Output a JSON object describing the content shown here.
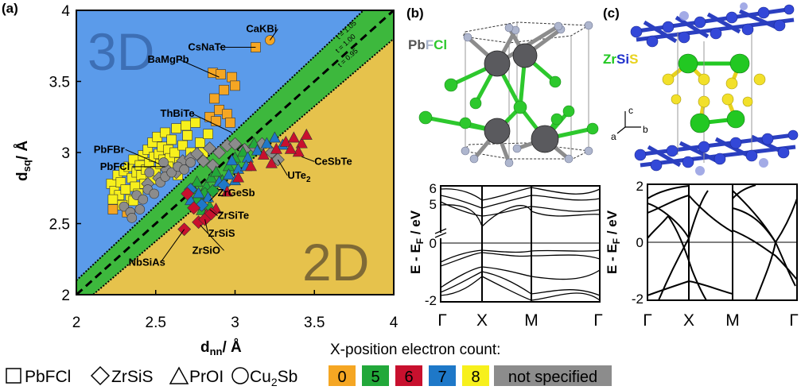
{
  "chart_data": [
    {
      "type": "scatter",
      "panel_label": "(a)",
      "xlabel_main": "d",
      "xlabel_sub": "nn",
      "xlabel_unit": "/ Å",
      "ylabel_main": "d",
      "ylabel_sub": "sq",
      "ylabel_unit": "/ Å",
      "xlim": [
        2,
        4
      ],
      "ylim": [
        2,
        4
      ],
      "xticks": [
        "2",
        "2.5",
        "3",
        "3.5",
        "4"
      ],
      "yticks": [
        "2",
        "2.5",
        "3",
        "3.5",
        "4"
      ],
      "region_labels": [
        "3D",
        "2D"
      ],
      "boundary_lines": [
        {
          "label": "t = 1.05",
          "slope": 1.05
        },
        {
          "label": "t = 1.00",
          "slope": 1.0
        },
        {
          "label": "t = 0.95",
          "slope": 0.95
        }
      ],
      "annotations": [
        {
          "text": "CaKBi",
          "x": 3.22,
          "y": 3.79
        },
        {
          "text": "CsNaTe",
          "x": 3.13,
          "y": 3.74
        },
        {
          "text": "BaMgPb",
          "x": 2.9,
          "y": 3.53
        },
        {
          "text": "ThBiTe",
          "x": 2.98,
          "y": 3.14
        },
        {
          "text": "PbFBr",
          "x": 2.52,
          "y": 2.92
        },
        {
          "text": "PbFCl",
          "x": 2.56,
          "y": 2.9
        },
        {
          "text": "CeSbTe",
          "x": 3.42,
          "y": 2.97
        },
        {
          "text": "UTe",
          "sub": "2",
          "x": 3.27,
          "y": 2.95
        },
        {
          "text": "ZrGeSb",
          "x": 2.84,
          "y": 2.66
        },
        {
          "text": "ZrSiTe",
          "x": 2.84,
          "y": 2.6
        },
        {
          "text": "ZrSiS",
          "x": 2.81,
          "y": 2.53
        },
        {
          "text": "ZrSiO",
          "x": 2.78,
          "y": 2.49
        },
        {
          "text": "NbSiAs",
          "x": 2.68,
          "y": 2.46
        }
      ],
      "structure_legend": [
        {
          "symbol": "square",
          "label": "PbFCl"
        },
        {
          "symbol": "diamond",
          "label": "ZrSiS"
        },
        {
          "symbol": "triangle",
          "label": "PrOI"
        },
        {
          "symbol": "circle",
          "label": "Cu",
          "sub": "2",
          "suffix": "Sb"
        }
      ],
      "electron_count_legend": {
        "title": "X-position electron count:",
        "items": [
          {
            "label": "0",
            "color": "#F5A623"
          },
          {
            "label": "5",
            "color": "#22A83A"
          },
          {
            "label": "6",
            "color": "#C8102E"
          },
          {
            "label": "7",
            "color": "#1E78C8"
          },
          {
            "label": "8",
            "color": "#F7F01C"
          },
          {
            "label": "not specified",
            "color": "#8C8C8C"
          }
        ]
      },
      "series": [
        {
          "structure": "square",
          "count": "8",
          "points": [
            [
              2.22,
              2.78
            ],
            [
              2.24,
              2.73
            ],
            [
              2.26,
              2.84
            ],
            [
              2.27,
              2.7
            ],
            [
              2.28,
              2.79
            ],
            [
              2.3,
              2.87
            ],
            [
              2.31,
              2.74
            ],
            [
              2.33,
              2.9
            ],
            [
              2.34,
              2.67
            ],
            [
              2.35,
              2.82
            ],
            [
              2.36,
              2.95
            ],
            [
              2.37,
              2.76
            ],
            [
              2.38,
              2.86
            ],
            [
              2.39,
              2.71
            ],
            [
              2.4,
              2.91
            ],
            [
              2.41,
              2.84
            ],
            [
              2.42,
              2.98
            ],
            [
              2.43,
              2.78
            ],
            [
              2.44,
              2.88
            ],
            [
              2.45,
              3.02
            ],
            [
              2.46,
              2.93
            ],
            [
              2.47,
              2.81
            ],
            [
              2.48,
              3.07
            ],
            [
              2.49,
              2.97
            ],
            [
              2.5,
              2.87
            ],
            [
              2.51,
              3.11
            ],
            [
              2.52,
              2.99
            ],
            [
              2.53,
              2.92
            ],
            [
              2.54,
              3.04
            ],
            [
              2.55,
              2.95
            ],
            [
              2.56,
              3.14
            ],
            [
              2.58,
              3.02
            ],
            [
              2.59,
              2.96
            ],
            [
              2.6,
              3.09
            ],
            [
              2.62,
              3.0
            ],
            [
              2.63,
              3.17
            ],
            [
              2.65,
              2.93
            ],
            [
              2.67,
              3.05
            ],
            [
              2.7,
              3.12
            ],
            [
              2.72,
              3.0
            ],
            [
              2.75,
              3.21
            ],
            [
              2.78,
              3.07
            ],
            [
              2.8,
              3.0
            ],
            [
              2.83,
              3.13
            ],
            [
              2.23,
              2.67
            ],
            [
              2.29,
              2.63
            ],
            [
              2.36,
              2.66
            ],
            [
              2.58,
              2.9
            ],
            [
              2.64,
              2.84
            ],
            [
              2.69,
              3.19
            ]
          ]
        },
        {
          "structure": "square",
          "count": "0",
          "points": [
            [
              2.23,
              2.6
            ],
            [
              2.32,
              2.58
            ],
            [
              2.84,
              3.25
            ],
            [
              2.87,
              3.38
            ],
            [
              2.9,
              3.3
            ],
            [
              2.93,
              3.44
            ],
            [
              2.95,
              3.27
            ],
            [
              2.98,
              3.53
            ],
            [
              2.97,
              3.21
            ],
            [
              3.0,
              3.47
            ],
            [
              2.88,
              3.22
            ],
            [
              2.86,
              3.56
            ],
            [
              2.91,
              3.55
            ],
            [
              3.13,
              3.74
            ]
          ]
        },
        {
          "structure": "circle",
          "count": "0",
          "points": [
            [
              3.22,
              3.79
            ]
          ]
        },
        {
          "structure": "diamond",
          "count": "ns",
          "points": [
            [
              2.52,
              2.82
            ],
            [
              2.57,
              2.88
            ],
            [
              2.63,
              2.86
            ],
            [
              2.67,
              2.94
            ],
            [
              2.72,
              2.96
            ],
            [
              2.76,
              2.99
            ],
            [
              2.84,
              3.03
            ],
            [
              2.9,
              3.0
            ],
            [
              2.95,
              3.05
            ],
            [
              3.0,
              3.06
            ],
            [
              3.06,
              3.02
            ],
            [
              3.12,
              3.04
            ],
            [
              3.17,
              3.06
            ],
            [
              3.23,
              3.0
            ],
            [
              3.27,
              2.95
            ],
            [
              2.8,
              2.94
            ],
            [
              2.86,
              2.91
            ],
            [
              2.45,
              2.78
            ]
          ]
        },
        {
          "structure": "circle",
          "count": "ns",
          "points": [
            [
              2.3,
              2.62
            ],
            [
              2.34,
              2.58
            ],
            [
              2.38,
              2.7
            ],
            [
              2.42,
              2.67
            ],
            [
              2.45,
              2.74
            ],
            [
              2.49,
              2.71
            ],
            [
              2.53,
              2.79
            ],
            [
              2.56,
              2.83
            ],
            [
              2.6,
              2.86
            ],
            [
              2.64,
              2.9
            ],
            [
              2.68,
              2.88
            ],
            [
              2.72,
              2.93
            ],
            [
              2.35,
              2.54
            ],
            [
              2.4,
              2.6
            ],
            [
              2.46,
              2.86
            ],
            [
              2.55,
              2.93
            ]
          ]
        },
        {
          "structure": "triangle",
          "count": "5",
          "points": [
            [
              2.73,
              2.74
            ],
            [
              2.76,
              2.79
            ],
            [
              2.79,
              2.7
            ],
            [
              2.82,
              2.76
            ],
            [
              2.85,
              2.82
            ],
            [
              2.88,
              2.86
            ],
            [
              2.92,
              2.8
            ],
            [
              2.96,
              2.9
            ],
            [
              3.0,
              2.96
            ],
            [
              3.05,
              3.0
            ],
            [
              3.12,
              3.06
            ],
            [
              2.84,
              2.62
            ],
            [
              2.79,
              2.59
            ]
          ]
        },
        {
          "structure": "diamond",
          "count": "5",
          "points": [
            [
              2.76,
              2.66
            ],
            [
              2.81,
              2.71
            ],
            [
              2.86,
              2.73
            ]
          ]
        },
        {
          "structure": "triangle",
          "count": "7",
          "points": [
            [
              2.72,
              2.66
            ],
            [
              2.77,
              2.71
            ],
            [
              2.83,
              2.68
            ],
            [
              2.9,
              2.79
            ],
            [
              2.96,
              2.84
            ],
            [
              3.02,
              2.88
            ],
            [
              3.08,
              2.96
            ],
            [
              3.14,
              3.01
            ],
            [
              3.2,
              3.06
            ],
            [
              3.25,
              3.1
            ],
            [
              3.3,
              3.05
            ],
            [
              3.07,
              2.9
            ],
            [
              3.0,
              2.8
            ],
            [
              2.98,
              2.94
            ]
          ]
        },
        {
          "structure": "diamond",
          "count": "7",
          "points": [
            [
              2.72,
              2.74
            ],
            [
              2.79,
              2.63
            ],
            [
              2.93,
              2.77
            ]
          ]
        },
        {
          "structure": "triangle",
          "count": "6",
          "points": [
            [
              2.82,
              2.56
            ],
            [
              2.88,
              2.6
            ],
            [
              2.95,
              2.72
            ],
            [
              3.02,
              2.82
            ],
            [
              3.1,
              2.9
            ],
            [
              3.18,
              2.98
            ],
            [
              3.26,
              3.02
            ],
            [
              3.32,
              3.07
            ],
            [
              3.37,
              3.1
            ],
            [
              3.42,
              3.06
            ],
            [
              3.45,
              3.12
            ],
            [
              3.4,
              3.0
            ],
            [
              3.35,
              3.02
            ],
            [
              3.23,
              2.92
            ]
          ]
        },
        {
          "structure": "diamond",
          "count": "6",
          "points": [
            [
              2.68,
              2.46
            ],
            [
              2.77,
              2.51
            ],
            [
              2.81,
              2.53
            ],
            [
              2.85,
              2.57
            ],
            [
              2.74,
              2.61
            ],
            [
              2.7,
              2.71
            ]
          ]
        }
      ]
    },
    {
      "type": "line",
      "panel_label": "(b)",
      "structure_label_parts": [
        {
          "text": "Pb",
          "color": "#555555"
        },
        {
          "text": "F",
          "color": "#A8B4CC"
        },
        {
          "text": "Cl",
          "color": "#2DC82D"
        }
      ],
      "ylabel": "E - E",
      "ylabel_sub": "F",
      "ylabel_unit": " / eV",
      "yticks": [
        "6",
        "5",
        "0",
        "-2"
      ],
      "xticks": [
        "Γ",
        "X",
        "M",
        "Γ"
      ]
    },
    {
      "type": "line",
      "panel_label": "(c)",
      "structure_label_parts": [
        {
          "text": "Zr",
          "color": "#22C822"
        },
        {
          "text": "Si",
          "color": "#2233CC"
        },
        {
          "text": "S",
          "color": "#E8D21E"
        }
      ],
      "axes_labels": {
        "a": "a",
        "b": "b",
        "c": "c"
      },
      "ylabel": "E - E",
      "ylabel_sub": "F",
      "ylabel_unit": " / eV",
      "yticks": [
        "2",
        "0",
        "-2"
      ],
      "xticks": [
        "Γ",
        "X",
        "M",
        "Γ"
      ]
    }
  ]
}
